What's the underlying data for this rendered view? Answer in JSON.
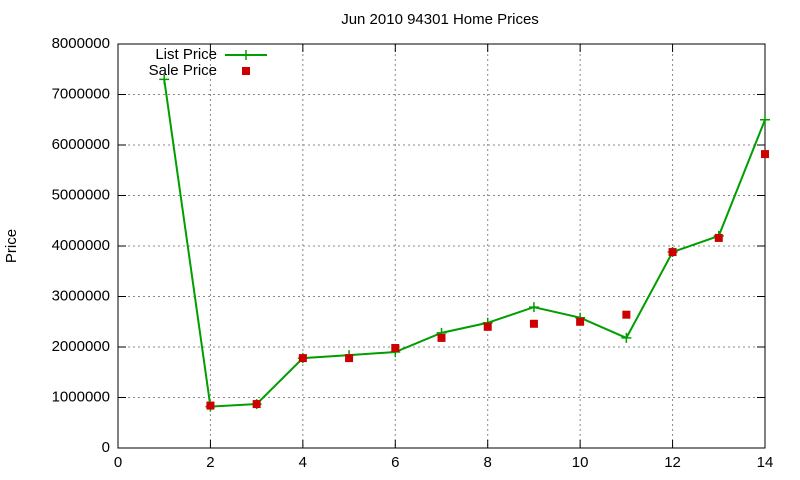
{
  "chart_data": {
    "type": "line",
    "title": "Jun 2010 94301 Home Prices",
    "y_label": "Price",
    "x": [
      1,
      2,
      3,
      4,
      5,
      6,
      7,
      8,
      9,
      10,
      11,
      12,
      13,
      14
    ],
    "series": [
      {
        "name": "List Price",
        "color": "#009e00",
        "style": "linespoints",
        "values": [
          7300000,
          820000,
          870000,
          1780000,
          1840000,
          1900000,
          2280000,
          2480000,
          2790000,
          2580000,
          2180000,
          3880000,
          4200000,
          6500000
        ]
      },
      {
        "name": "Sale Price",
        "color": "#cc0000",
        "style": "points",
        "values": [
          null,
          840000,
          870000,
          1780000,
          1780000,
          1980000,
          2180000,
          2400000,
          2460000,
          2500000,
          2640000,
          3880000,
          4160000,
          5820000
        ]
      }
    ],
    "xlim": [
      0,
      14
    ],
    "xticks": [
      0,
      2,
      4,
      6,
      8,
      10,
      12,
      14
    ],
    "ylim": [
      0,
      8000000
    ],
    "yticks": [
      0,
      1000000,
      2000000,
      3000000,
      4000000,
      5000000,
      6000000,
      7000000,
      8000000
    ],
    "grid": true,
    "legend": "top-left"
  }
}
